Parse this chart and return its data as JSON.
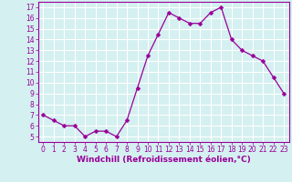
{
  "x": [
    0,
    1,
    2,
    3,
    4,
    5,
    6,
    7,
    8,
    9,
    10,
    11,
    12,
    13,
    14,
    15,
    16,
    17,
    18,
    19,
    20,
    21,
    22,
    23
  ],
  "y": [
    7.0,
    6.5,
    6.0,
    6.0,
    5.0,
    5.5,
    5.5,
    5.0,
    6.5,
    9.5,
    12.5,
    14.5,
    16.5,
    16.0,
    15.5,
    15.5,
    16.5,
    17.0,
    14.0,
    13.0,
    12.5,
    12.0,
    10.5,
    9.0
  ],
  "line_color": "#990099",
  "marker": "D",
  "marker_size": 2.5,
  "bg_color": "#d4f0f0",
  "grid_color": "#ffffff",
  "xlabel": "Windchill (Refroidissement éolien,°C)",
  "xlim": [
    -0.5,
    23.5
  ],
  "ylim": [
    4.5,
    17.5
  ],
  "yticks": [
    5,
    6,
    7,
    8,
    9,
    10,
    11,
    12,
    13,
    14,
    15,
    16,
    17
  ],
  "xticks": [
    0,
    1,
    2,
    3,
    4,
    5,
    6,
    7,
    8,
    9,
    10,
    11,
    12,
    13,
    14,
    15,
    16,
    17,
    18,
    19,
    20,
    21,
    22,
    23
  ],
  "tick_color": "#990099",
  "label_color": "#990099",
  "spine_color": "#990099",
  "tick_fontsize": 5.5,
  "xlabel_fontsize": 6.5
}
